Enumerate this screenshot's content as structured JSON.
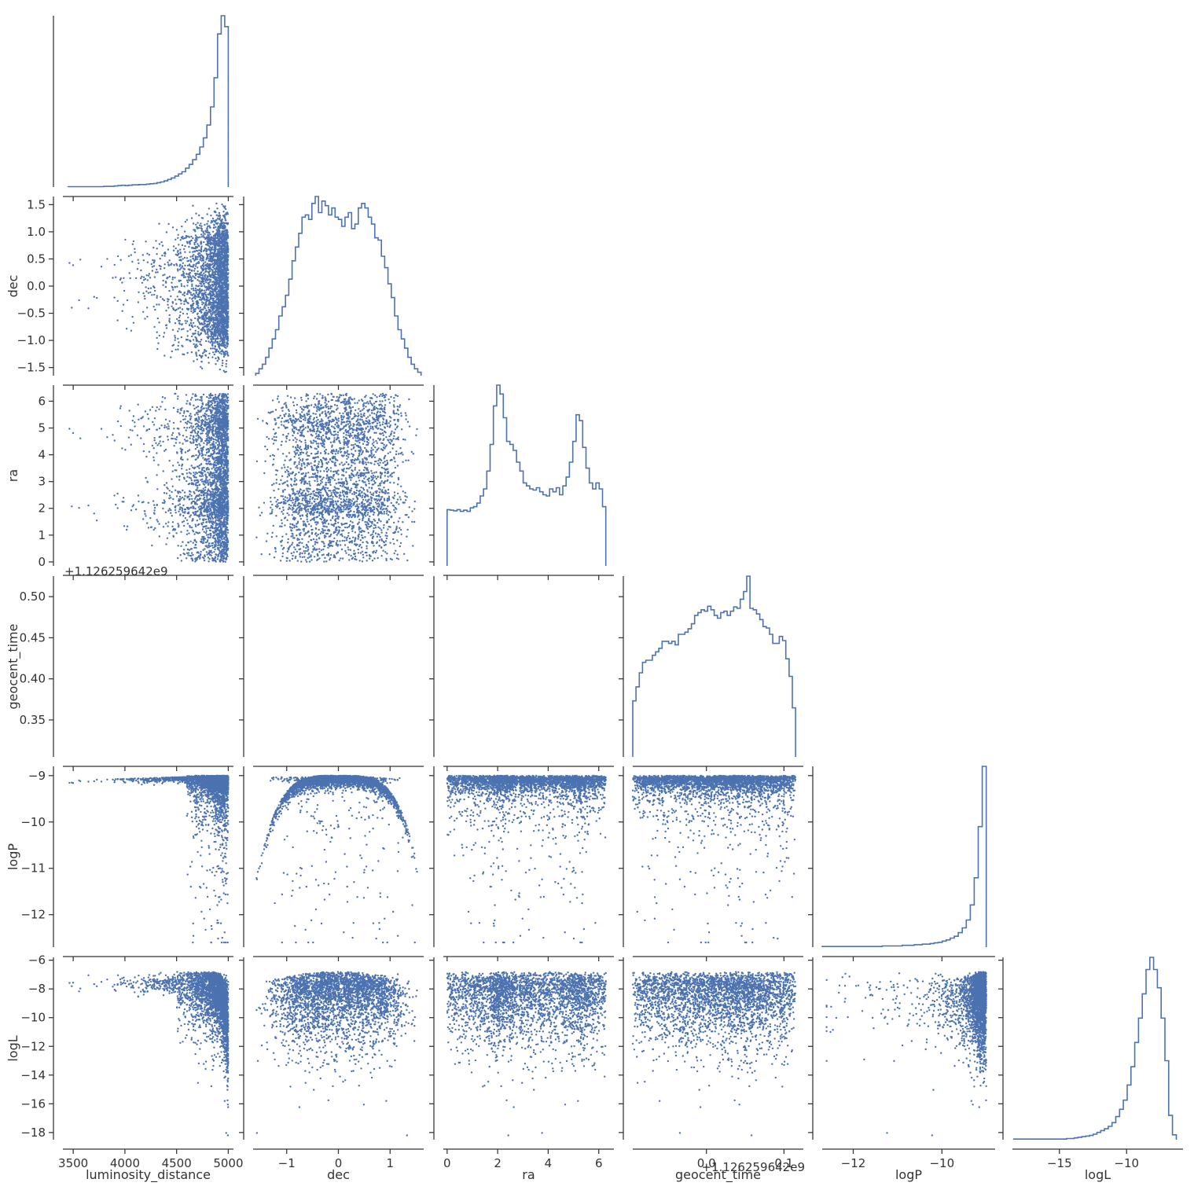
{
  "chart_data": {
    "type": "scatter",
    "kind": "corner-plot",
    "color": "#4c72b0",
    "parameters": [
      {
        "name": "luminosity_distance",
        "label": "luminosity_distance",
        "range": [
          3400,
          5050
        ],
        "ticks": [
          3500,
          4000,
          4500,
          5000
        ],
        "tick_labels": [
          "3500",
          "4000",
          "4500",
          "5000"
        ]
      },
      {
        "name": "dec",
        "label": "dec",
        "range": [
          -1.65,
          1.65
        ],
        "ticks": [
          -1.5,
          -1.0,
          -0.5,
          0.0,
          0.5,
          1.0,
          1.5
        ],
        "tick_labels": [
          "−1.5",
          "−1.0",
          "−0.5",
          "0.0",
          "0.5",
          "1.0",
          "1.5"
        ],
        "x_ticks": [
          -1,
          0,
          1
        ],
        "x_tick_labels": [
          "−1",
          "0",
          "1"
        ]
      },
      {
        "name": "ra",
        "label": "ra",
        "range": [
          -0.15,
          6.6
        ],
        "ticks": [
          0,
          1,
          2,
          3,
          4,
          5,
          6
        ],
        "tick_labels": [
          "0",
          "1",
          "2",
          "3",
          "4",
          "5",
          "6"
        ],
        "x_ticks": [
          0,
          2,
          4,
          6
        ],
        "x_tick_labels": [
          "0",
          "2",
          "4",
          "6"
        ]
      },
      {
        "name": "geocent_time",
        "label": "geocent_time",
        "range": [
          0.305,
          0.525
        ],
        "ticks": [
          0.35,
          0.4,
          0.45,
          0.5
        ],
        "tick_labels": [
          "0.35",
          "0.40",
          "0.45",
          "0.50"
        ],
        "offset_label": "+1.126259642e9",
        "x_range": [
          -0.095,
          0.125
        ],
        "x_ticks": [
          0.0,
          0.1
        ],
        "x_tick_labels": [
          "0.0",
          "0.1"
        ],
        "x_offset_label": "+1.126259642e9"
      },
      {
        "name": "logP",
        "label": "logP",
        "range": [
          -12.7,
          -8.8
        ],
        "ticks": [
          -12,
          -11,
          -10,
          -9
        ],
        "tick_labels": [
          "−12",
          "−11",
          "−10",
          "−9"
        ],
        "x_ticks": [
          -12,
          -10
        ],
        "x_tick_labels": [
          "−12",
          "−10"
        ]
      },
      {
        "name": "logL",
        "label": "logL",
        "range": [
          -18.5,
          -5.8
        ],
        "ticks": [
          -18,
          -16,
          -14,
          -12,
          -10,
          -8,
          -6
        ],
        "tick_labels": [
          "−18",
          "−16",
          "−14",
          "−12",
          "−10",
          "−8",
          "−6"
        ],
        "x_ticks": [
          -15,
          -10
        ],
        "x_tick_labels": [
          "−15",
          "−10"
        ]
      }
    ],
    "histograms": {
      "luminosity_distance": {
        "x0": 3450,
        "x1": 5000,
        "counts": [
          1,
          1,
          1,
          1,
          1,
          1,
          1,
          1,
          1,
          1,
          2,
          2,
          2,
          3,
          4,
          5,
          4,
          5,
          6,
          6,
          7,
          7,
          8,
          9,
          10,
          12,
          14,
          17,
          21,
          25,
          30,
          36,
          42,
          52,
          62,
          75,
          90,
          110,
          135,
          170,
          220,
          300,
          420,
          470,
          440
        ]
      },
      "dec": {
        "x0": -1.6,
        "x1": 1.6,
        "counts": [
          2,
          6,
          10,
          16,
          24,
          32,
          40,
          52,
          60,
          70,
          84,
          100,
          112,
          124,
          138,
          140,
          136,
          150,
          156,
          142,
          152,
          148,
          140,
          146,
          138,
          136,
          130,
          138,
          142,
          128,
          132,
          146,
          150,
          146,
          138,
          132,
          120,
          118,
          104,
          94,
          80,
          68,
          52,
          40,
          32,
          24,
          16,
          10,
          6,
          3
        ]
      },
      "ra": {
        "x0": 0,
        "x1": 6.28,
        "counts": [
          95,
          94,
          93,
          95,
          92,
          94,
          92,
          98,
          100,
          106,
          118,
          130,
          160,
          205,
          270,
          305,
          290,
          250,
          210,
          205,
          195,
          175,
          160,
          140,
          135,
          130,
          128,
          132,
          125,
          120,
          118,
          130,
          125,
          132,
          120,
          135,
          150,
          175,
          210,
          255,
          245,
          200,
          165,
          140,
          130,
          140,
          130,
          100
        ]
      },
      "geocent_time": {
        "x0": -0.095,
        "x1": 0.115,
        "counts": [
          80,
          100,
          120,
          135,
          138,
          138,
          145,
          150,
          155,
          165,
          165,
          162,
          165,
          160,
          175,
          175,
          178,
          183,
          190,
          202,
          206,
          210,
          208,
          215,
          210,
          202,
          198,
          206,
          208,
          202,
          208,
          214,
          212,
          225,
          236,
          258,
          212,
          210,
          204,
          196,
          186,
          184,
          175,
          162,
          162,
          172,
          166,
          140,
          115,
          70
        ]
      },
      "logP": {
        "x0": -12.7,
        "x1": -9.0,
        "counts": [
          1,
          1,
          1,
          1,
          1,
          1,
          1,
          1,
          1,
          1,
          1,
          1,
          1,
          1,
          1,
          2,
          2,
          2,
          2,
          2,
          3,
          3,
          3,
          4,
          4,
          5,
          5,
          6,
          7,
          8,
          10,
          12,
          15,
          18,
          24,
          32,
          45,
          70,
          115,
          200,
          300
        ]
      },
      "logL": {
        "x0": -18.4,
        "x1": -6.3,
        "counts": [
          1,
          1,
          1,
          1,
          1,
          1,
          1,
          1,
          1,
          1,
          1,
          1,
          1,
          1,
          2,
          2,
          3,
          4,
          5,
          6,
          7,
          9,
          12,
          15,
          18,
          22,
          28,
          38,
          50,
          65,
          90,
          120,
          160,
          200,
          240,
          280,
          300,
          280,
          250,
          200,
          130,
          40,
          8
        ]
      }
    },
    "scatter_points_per_panel": 3000
  }
}
